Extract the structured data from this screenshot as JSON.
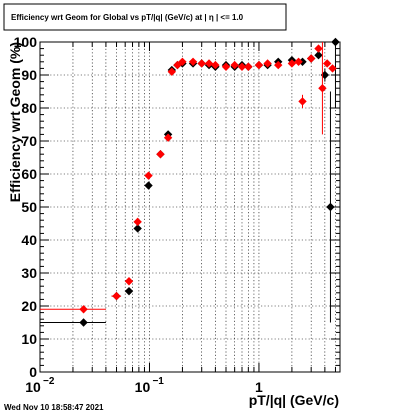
{
  "chart_data": {
    "type": "scatter",
    "title": "Efficiency wrt Geom for Global vs pT/|q| (GeV/c) at |  η  | <= 1.0",
    "xlabel": "pT/|q| (GeV/c)",
    "ylabel": "Efficiency wrt Geom (%)",
    "xscale": "log",
    "xlim": [
      0.01,
      5.5
    ],
    "ylim": [
      0,
      100
    ],
    "x_ticks": [
      {
        "value": 0.01,
        "mantissa": "10",
        "exponent": "−2"
      },
      {
        "value": 0.1,
        "mantissa": "10",
        "exponent": "−1"
      },
      {
        "value": 1,
        "mantissa": "1",
        "exponent": ""
      }
    ],
    "y_ticks": [
      "0",
      "10",
      "20",
      "30",
      "40",
      "50",
      "60",
      "70",
      "80",
      "90",
      "100"
    ],
    "grid": true,
    "series": [
      {
        "color": "#000000",
        "marker": "diamond",
        "points": [
          {
            "x": 0.025,
            "y": 15.0,
            "xerr": [
              0.01,
              0.04
            ],
            "yerr": 0.8
          },
          {
            "x": 0.05,
            "y": 23.0,
            "xerr": [
              0.045,
              0.055
            ],
            "yerr": 0.8
          },
          {
            "x": 0.065,
            "y": 24.5,
            "xerr": [
              0.06,
              0.07
            ],
            "yerr": 1.0
          },
          {
            "x": 0.078,
            "y": 43.5,
            "yerr": 1.0
          },
          {
            "x": 0.098,
            "y": 56.5,
            "yerr": 1.0
          },
          {
            "x": 0.126,
            "y": 66.0,
            "yerr": 1.0
          },
          {
            "x": 0.148,
            "y": 72.0,
            "yerr": 1.0
          },
          {
            "x": 0.16,
            "y": 91.5
          },
          {
            "x": 0.18,
            "y": 93.0
          },
          {
            "x": 0.2,
            "y": 93.5
          },
          {
            "x": 0.25,
            "y": 93.5
          },
          {
            "x": 0.3,
            "y": 93.5
          },
          {
            "x": 0.35,
            "y": 93.0
          },
          {
            "x": 0.4,
            "y": 92.5
          },
          {
            "x": 0.5,
            "y": 93.0
          },
          {
            "x": 0.6,
            "y": 92.5
          },
          {
            "x": 0.7,
            "y": 93.0
          },
          {
            "x": 0.8,
            "y": 92.5
          },
          {
            "x": 1.0,
            "y": 93.0
          },
          {
            "x": 1.2,
            "y": 93.0
          },
          {
            "x": 1.5,
            "y": 94.0
          },
          {
            "x": 2.0,
            "y": 94.5
          },
          {
            "x": 2.5,
            "y": 94.0
          },
          {
            "x": 3.0,
            "y": 95.0
          },
          {
            "x": 3.5,
            "y": 96.0
          },
          {
            "x": 4.0,
            "y": 90.0,
            "yerr": 2.0
          },
          {
            "x": 4.5,
            "y": 50.0,
            "yerr": 35.0
          },
          {
            "x": 5.0,
            "y": 100.0,
            "yerr": 20.0
          }
        ]
      },
      {
        "color": "#ff0000",
        "marker": "diamond",
        "points": [
          {
            "x": 0.025,
            "y": 19.0,
            "xerr": [
              0.01,
              0.04
            ],
            "yerr": 0.8
          },
          {
            "x": 0.05,
            "y": 23.0,
            "xerr": [
              0.045,
              0.055
            ],
            "yerr": 0.8
          },
          {
            "x": 0.065,
            "y": 27.5,
            "xerr": [
              0.06,
              0.07
            ],
            "yerr": 1.0
          },
          {
            "x": 0.078,
            "y": 45.5,
            "yerr": 1.0
          },
          {
            "x": 0.098,
            "y": 59.5,
            "yerr": 1.0
          },
          {
            "x": 0.126,
            "y": 66.0,
            "yerr": 1.0
          },
          {
            "x": 0.148,
            "y": 71.0,
            "yerr": 1.0
          },
          {
            "x": 0.16,
            "y": 91.0
          },
          {
            "x": 0.18,
            "y": 93.0
          },
          {
            "x": 0.2,
            "y": 94.0
          },
          {
            "x": 0.25,
            "y": 94.0
          },
          {
            "x": 0.3,
            "y": 93.5
          },
          {
            "x": 0.35,
            "y": 93.5
          },
          {
            "x": 0.4,
            "y": 93.0
          },
          {
            "x": 0.5,
            "y": 92.5
          },
          {
            "x": 0.6,
            "y": 93.0
          },
          {
            "x": 0.7,
            "y": 92.5
          },
          {
            "x": 0.8,
            "y": 92.5
          },
          {
            "x": 1.0,
            "y": 93.0
          },
          {
            "x": 1.2,
            "y": 93.5
          },
          {
            "x": 1.5,
            "y": 93.0
          },
          {
            "x": 2.0,
            "y": 93.5
          },
          {
            "x": 2.3,
            "y": 94.0
          },
          {
            "x": 2.5,
            "y": 82.0,
            "yerr": 2.0
          },
          {
            "x": 3.0,
            "y": 95.0
          },
          {
            "x": 3.5,
            "y": 98.0
          },
          {
            "x": 3.8,
            "y": 86.0,
            "yerr": 14.0
          },
          {
            "x": 4.2,
            "y": 93.5
          },
          {
            "x": 4.7,
            "y": 92.0
          }
        ]
      }
    ]
  },
  "footer": {
    "timestamp": "Wed Nov 10 18:58:47 2021"
  }
}
